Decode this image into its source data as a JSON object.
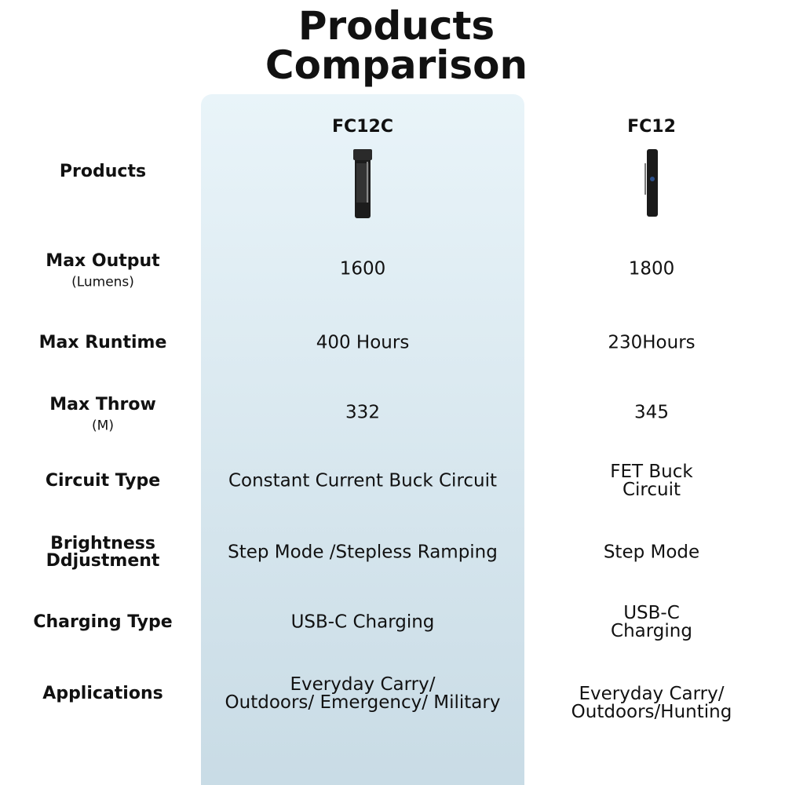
{
  "title": "Products Comparison",
  "columns": [
    "FC12C",
    "FC12"
  ],
  "rows": [
    {
      "label": "Products"
    },
    {
      "label": "Max Output",
      "unit": "(Lumens)",
      "cells": [
        "1600",
        "1800"
      ]
    },
    {
      "label": "Max Runtime",
      "cells": [
        "400 Hours",
        "230Hours"
      ]
    },
    {
      "label": "Max Throw",
      "unit": "(M)",
      "cells": [
        "332",
        "345"
      ]
    },
    {
      "label": "Circuit Type",
      "cells": [
        "Constant Current Buck Circuit",
        "FET Buck Circuit"
      ]
    },
    {
      "label": "Brightness\nDdjustment",
      "cells": [
        "Step Mode /Stepless Ramping",
        "Step Mode"
      ]
    },
    {
      "label": "Charging Type",
      "cells": [
        "USB-C Charging",
        "USB-C Charging"
      ]
    },
    {
      "label": "Applications",
      "cells": [
        "Everyday Carry/\nOutdoors/ Emergency/ Military",
        "Everyday Carry/\nOutdoors/Hunting"
      ]
    }
  ]
}
